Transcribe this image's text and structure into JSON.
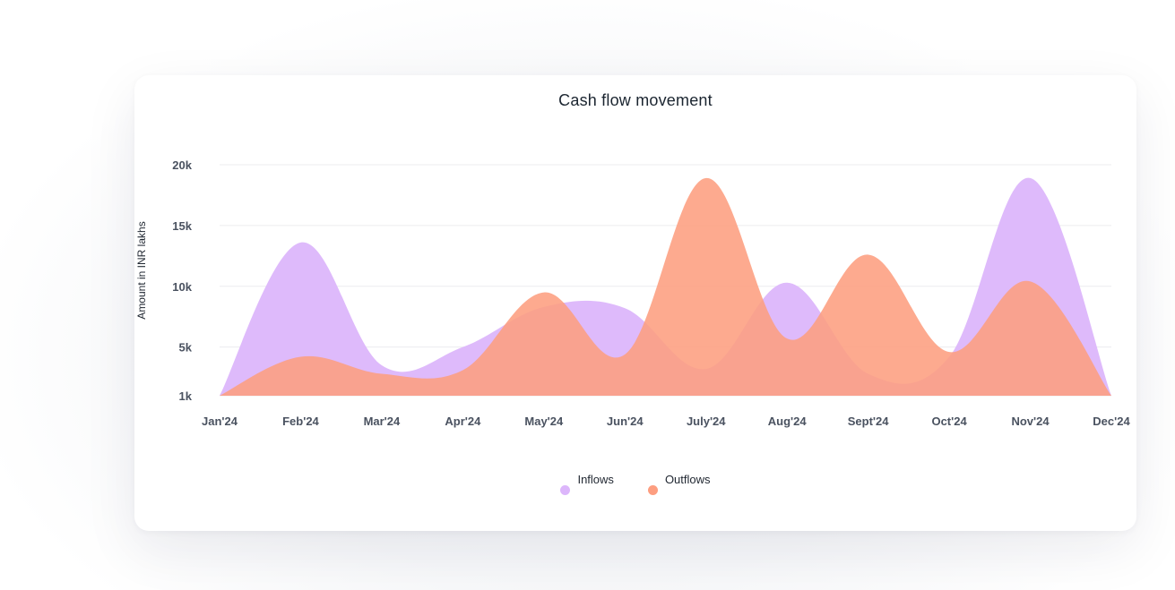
{
  "chart_data": {
    "type": "area",
    "title": "Cash flow movement",
    "xlabel": "",
    "ylabel": "Amount in INR lakhs",
    "categories": [
      "Jan'24",
      "Feb'24",
      "Mar'24",
      "Apr'24",
      "May'24",
      "Jun'24",
      "July'24",
      "Aug'24",
      "Sept'24",
      "Oct'24",
      "Nov'24",
      "Dec'24"
    ],
    "y_ticks": [
      "20k",
      "15k",
      "10k",
      "5k",
      "1k"
    ],
    "y_tick_values": [
      20000,
      15000,
      10000,
      5000,
      1000
    ],
    "ylim": [
      1000,
      20000
    ],
    "grid": true,
    "legend_position": "bottom-center",
    "series": [
      {
        "name": "Inflows",
        "color": "#dcb6fb",
        "values": [
          1000,
          13600,
          3500,
          5000,
          8300,
          8200,
          3200,
          10300,
          2800,
          4200,
          18900,
          1000
        ]
      },
      {
        "name": "Outflows",
        "color": "#fd9e80",
        "values": [
          1000,
          4200,
          2800,
          3100,
          9500,
          4400,
          18900,
          5700,
          12600,
          4600,
          10400,
          1000
        ]
      }
    ]
  }
}
